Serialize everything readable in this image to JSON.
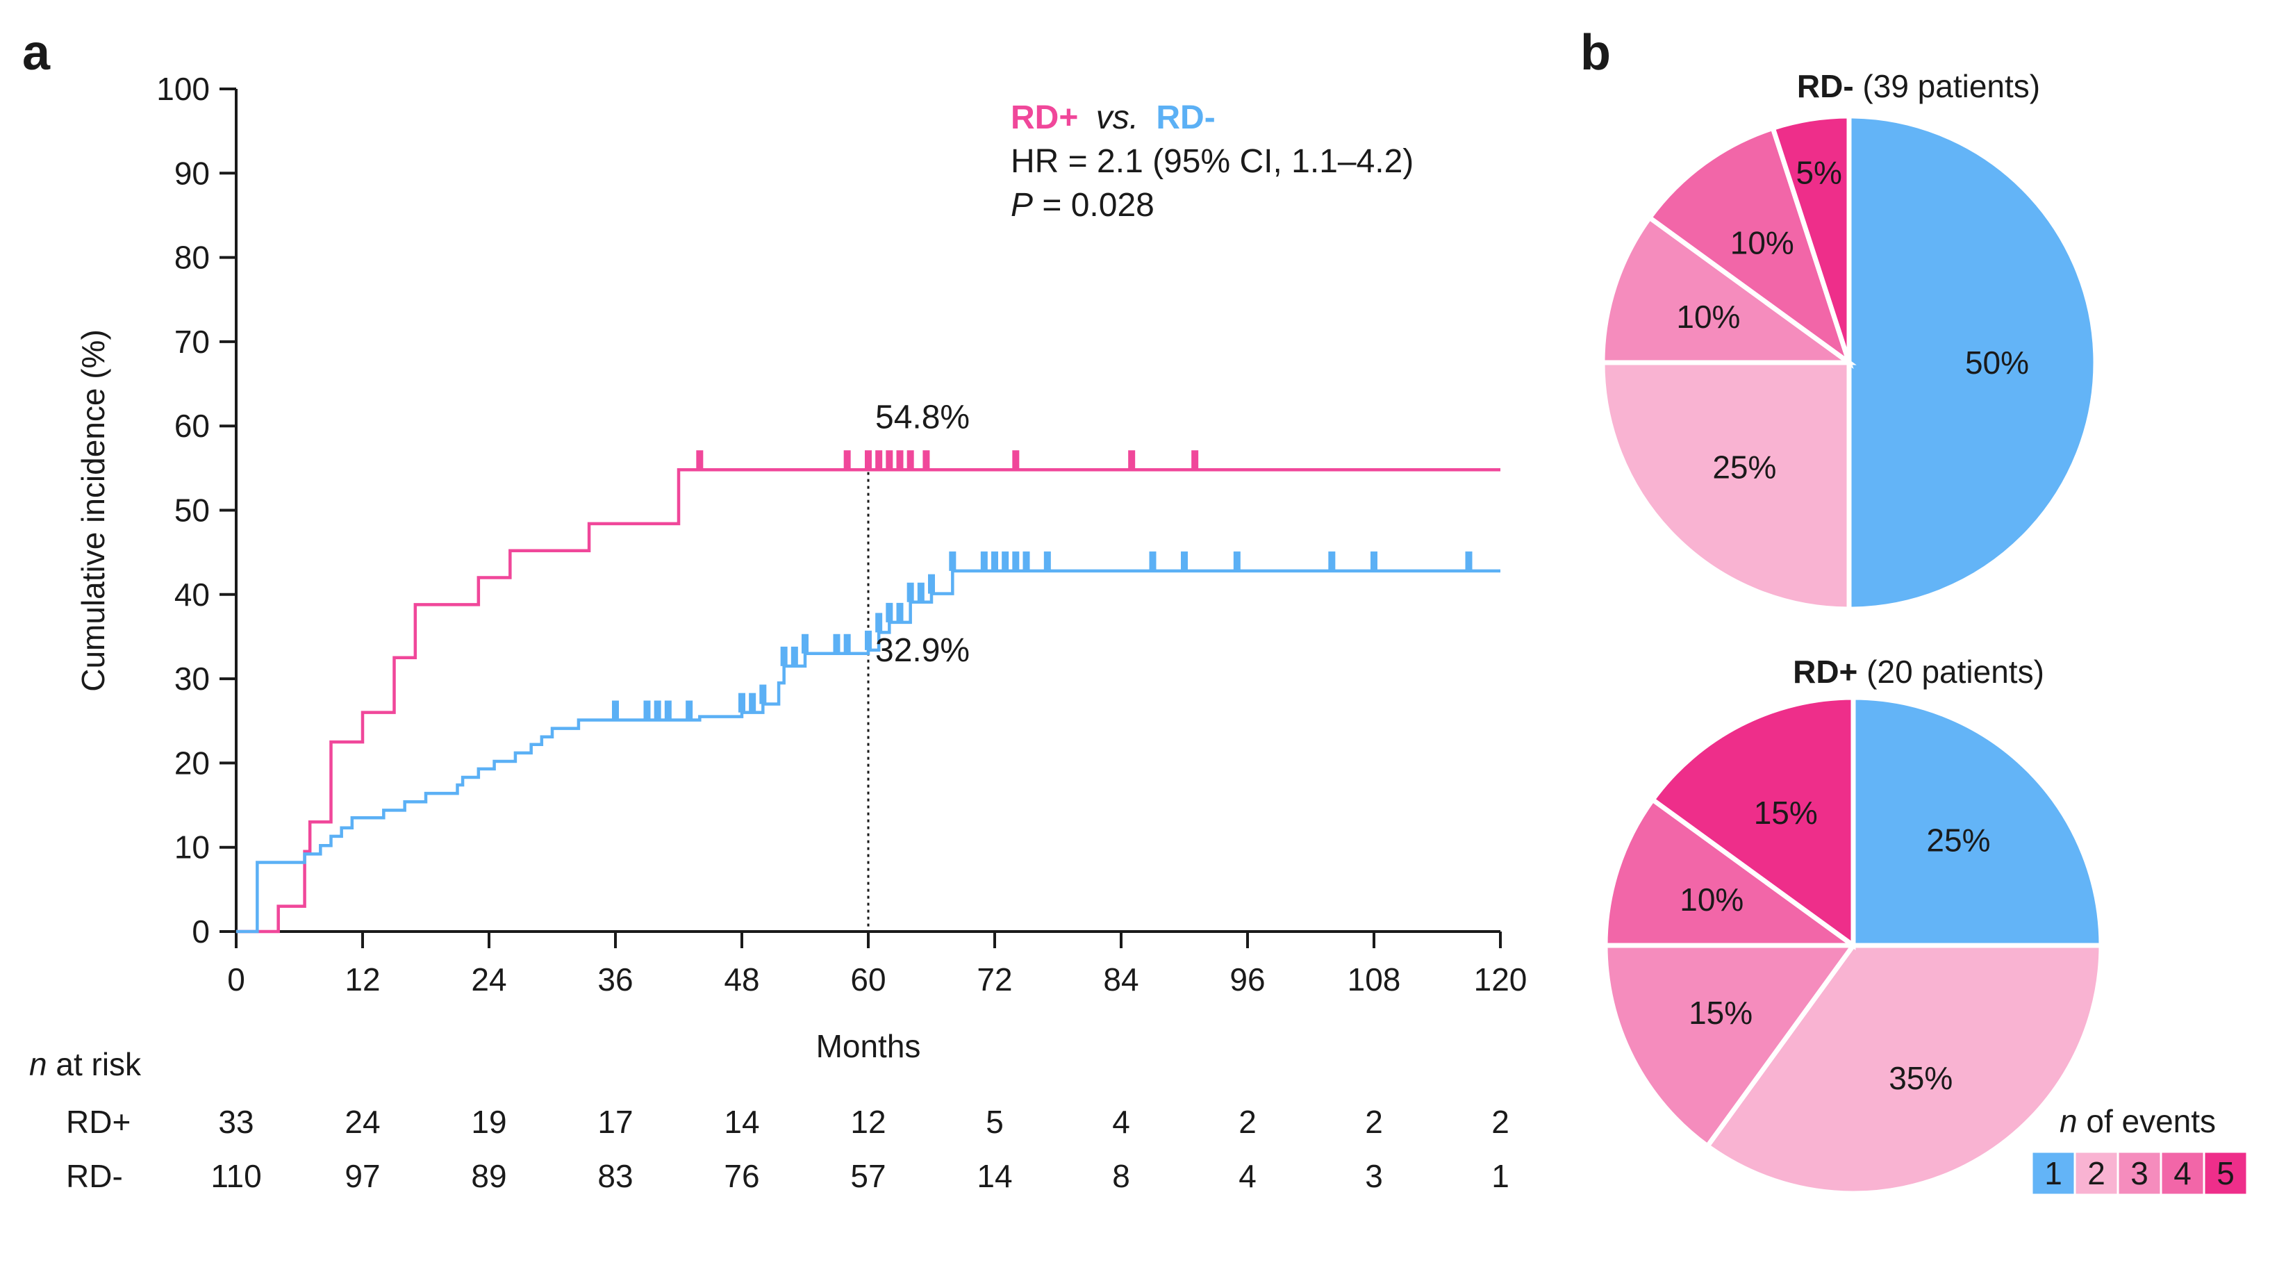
{
  "panels": {
    "a": "a",
    "b": "b"
  },
  "colors": {
    "rd_pos": "#F0479A",
    "rd_neg": "#5BB0F5",
    "axis": "#1a1a1a",
    "events": [
      "#63B4F7",
      "#F9B3D2",
      "#F58CBD",
      "#F266A8",
      "#EE2E8A"
    ]
  },
  "chart_data": [
    {
      "type": "line",
      "subtype": "step-cumulative-incidence",
      "xlabel": "Months",
      "ylabel": "Cumulative incidence (%)",
      "xlim": [
        0,
        120
      ],
      "ylim": [
        0,
        100
      ],
      "xticks": [
        0,
        12,
        24,
        36,
        48,
        60,
        72,
        84,
        96,
        108,
        120
      ],
      "yticks": [
        0,
        10,
        20,
        30,
        40,
        50,
        60,
        70,
        80,
        90,
        100
      ],
      "series": [
        {
          "name": "RD+",
          "steps": [
            [
              0,
              0
            ],
            [
              4,
              3
            ],
            [
              6.5,
              9.5
            ],
            [
              7,
              13
            ],
            [
              9,
              22.5
            ],
            [
              12,
              26
            ],
            [
              15,
              32.5
            ],
            [
              17,
              38.8
            ],
            [
              23,
              42
            ],
            [
              26,
              45.2
            ],
            [
              33.5,
              48.4
            ],
            [
              42,
              54.8
            ],
            [
              120,
              54.8
            ]
          ],
          "censored": [
            44,
            58,
            60,
            61,
            62,
            63,
            64,
            65.5,
            74,
            85,
            91
          ]
        },
        {
          "name": "RD-",
          "steps": [
            [
              0,
              0
            ],
            [
              2,
              8.2
            ],
            [
              6.5,
              9.2
            ],
            [
              8,
              10.2
            ],
            [
              9,
              11.3
            ],
            [
              10,
              12.3
            ],
            [
              11,
              13.5
            ],
            [
              14,
              14.4
            ],
            [
              16,
              15.4
            ],
            [
              18,
              16.4
            ],
            [
              21,
              17.4
            ],
            [
              21.5,
              18.3
            ],
            [
              23,
              19.3
            ],
            [
              24.5,
              20.2
            ],
            [
              26.5,
              21.2
            ],
            [
              28,
              22.2
            ],
            [
              29,
              23.1
            ],
            [
              30,
              24.1
            ],
            [
              32.5,
              25.1
            ],
            [
              40,
              25.1
            ],
            [
              44,
              25.5
            ],
            [
              48,
              26
            ],
            [
              50,
              27
            ],
            [
              51.5,
              29.5
            ],
            [
              52,
              31.5
            ],
            [
              54,
              33
            ],
            [
              60,
              33.4
            ],
            [
              61,
              35.5
            ],
            [
              62,
              36.7
            ],
            [
              64,
              39.1
            ],
            [
              66,
              40.1
            ],
            [
              68,
              42.8
            ],
            [
              120,
              42.8
            ]
          ],
          "censored": [
            36,
            39,
            40,
            41,
            43,
            48,
            49,
            50,
            52,
            53,
            54,
            57,
            58,
            60,
            61,
            62,
            63,
            64,
            65,
            66,
            68,
            71,
            72,
            73,
            74,
            75,
            77,
            87,
            90,
            95,
            104,
            108,
            117
          ]
        }
      ],
      "annotations": [
        {
          "text": "54.8%",
          "x": 60,
          "y": 54.8
        },
        {
          "text": "32.9%",
          "x": 60,
          "y": 32.9
        }
      ],
      "reference_line": {
        "x": 60
      },
      "stats": {
        "rd_pos": "RD+",
        "vs": "vs.",
        "rd_neg": "RD-",
        "hr": "HR = 2.1 (95% CI, 1.1–4.2)",
        "p_symbol": "P",
        "p_value": " = 0.028"
      },
      "risk_table": {
        "title_italic": "n",
        "title_rest": " at risk",
        "rows": [
          {
            "label": "RD+",
            "values": [
              33,
              24,
              19,
              17,
              14,
              12,
              5,
              4,
              2,
              2,
              2
            ]
          },
          {
            "label": "RD-",
            "values": [
              110,
              97,
              89,
              83,
              76,
              57,
              14,
              8,
              4,
              3,
              1
            ]
          }
        ]
      }
    },
    {
      "type": "pie",
      "title_bold": "RD-",
      "title_rest": " (39 patients)",
      "categories": [
        "1",
        "2",
        "3",
        "4",
        "5"
      ],
      "values": [
        50,
        25,
        10,
        10,
        5
      ],
      "labels": [
        "50%",
        "25%",
        "10%",
        "10%",
        "5%"
      ]
    },
    {
      "type": "pie",
      "title_bold": "RD+",
      "title_rest": " (20 patients)",
      "categories": [
        "1",
        "2",
        "3",
        "4",
        "5"
      ],
      "values": [
        25,
        35,
        15,
        10,
        15
      ],
      "labels": [
        "25%",
        "35%",
        "15%",
        "10%",
        "15%"
      ]
    }
  ],
  "legend": {
    "title_italic": "n",
    "title_rest": " of events",
    "items": [
      "1",
      "2",
      "3",
      "4",
      "5"
    ]
  }
}
